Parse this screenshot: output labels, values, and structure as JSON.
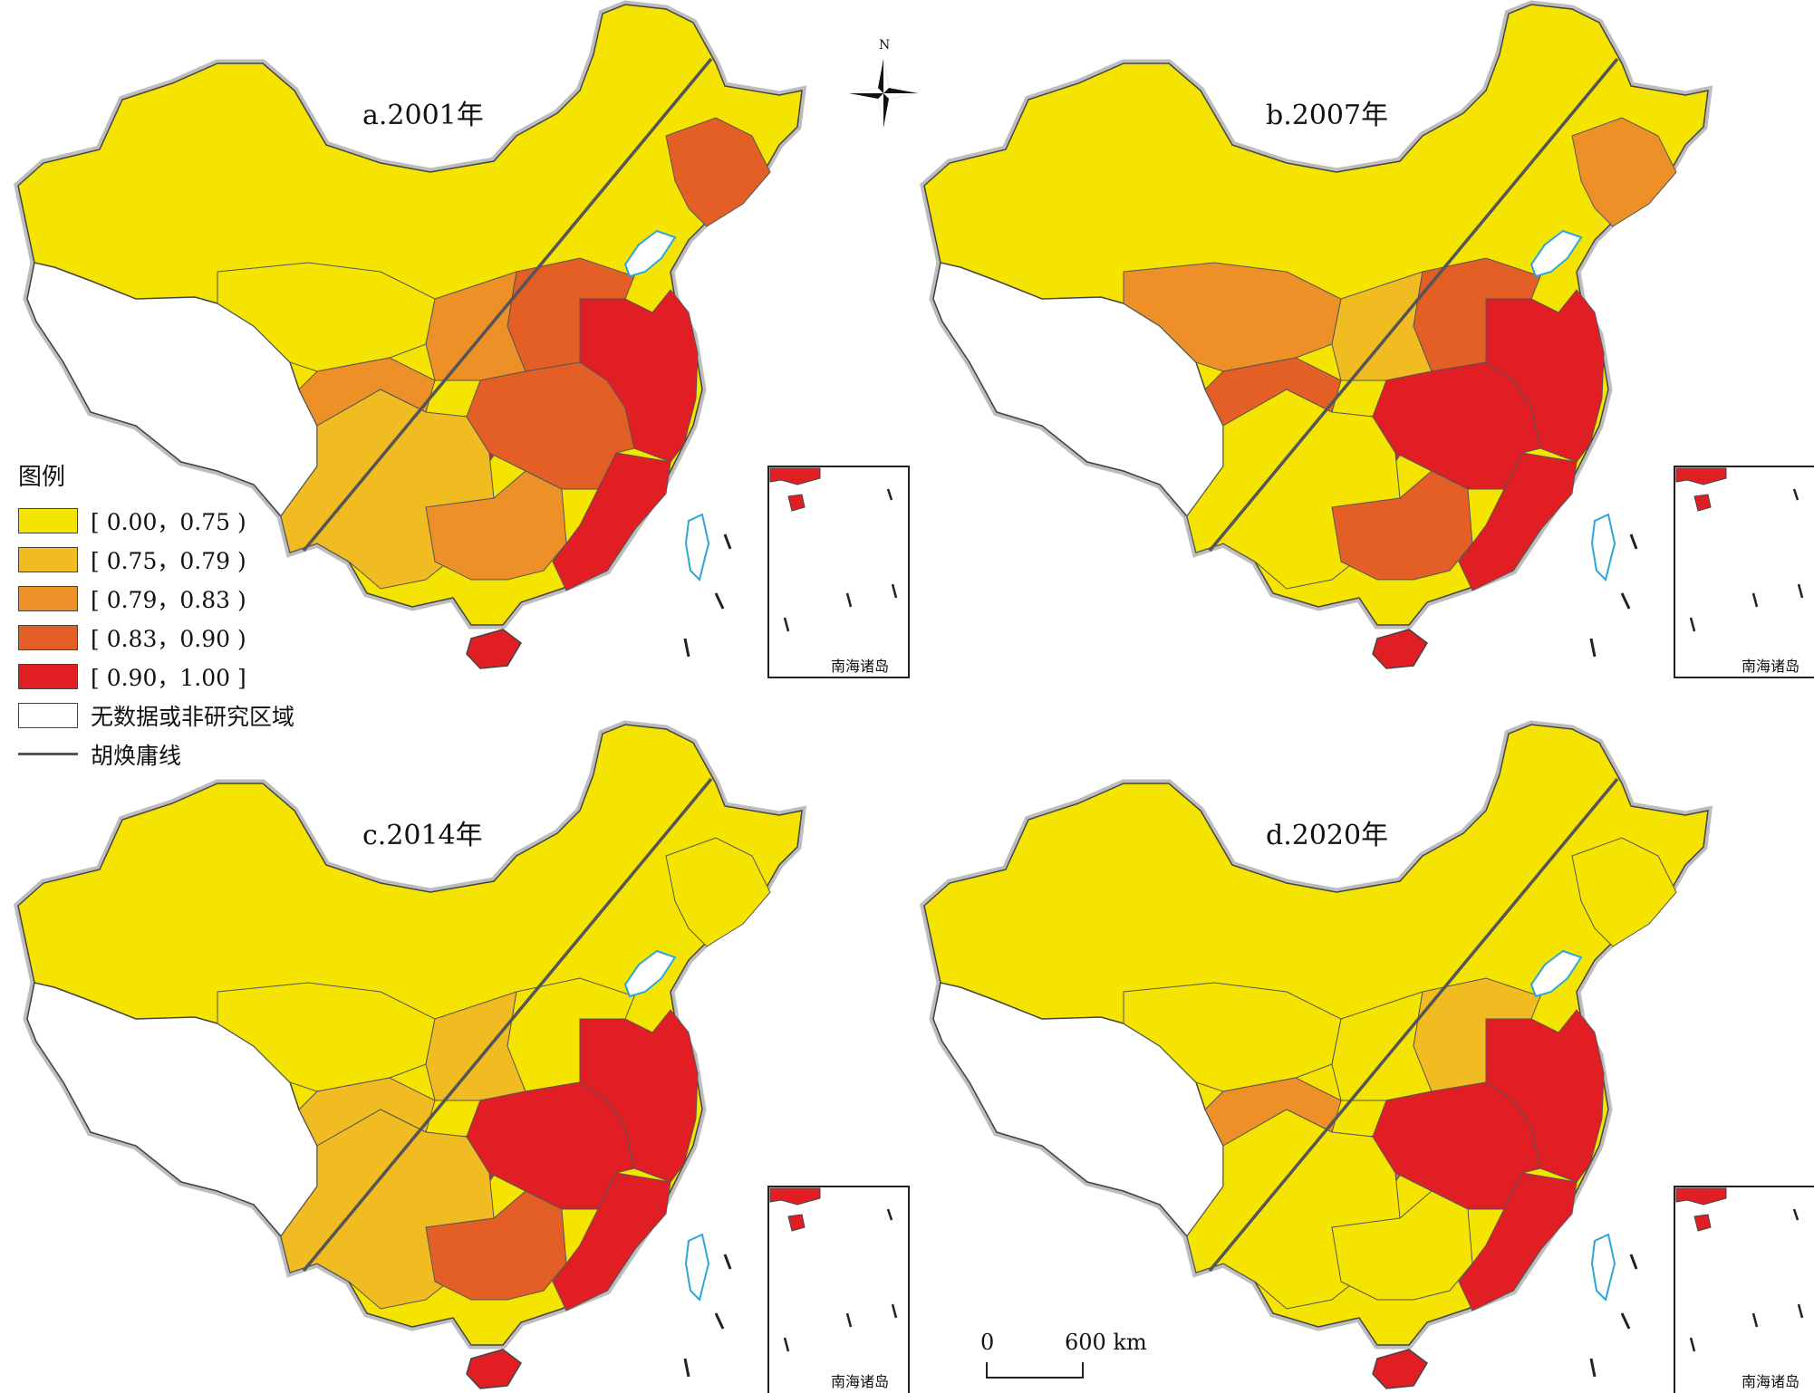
{
  "legend": {
    "title": "图例",
    "classes": [
      {
        "label": "[ 0.00，0.75 )",
        "color": "#f5e400"
      },
      {
        "label": "[ 0.75，0.79 )",
        "color": "#f1bb22"
      },
      {
        "label": "[ 0.79，0.83 )",
        "color": "#ec9027"
      },
      {
        "label": "[ 0.83，0.90 )",
        "color": "#e45f25"
      },
      {
        "label": "[ 0.90，1.00 ]",
        "color": "#e11e24"
      }
    ],
    "no_data_label": "无数据或非研究区域",
    "line_label": "胡焕庸线"
  },
  "panels": [
    {
      "title": "a.2001年",
      "inset_label": "南海诸岛"
    },
    {
      "title": "b.2007年",
      "inset_label": "南海诸岛"
    },
    {
      "title": "c.2014年",
      "inset_label": "南海诸岛"
    },
    {
      "title": "d.2020年",
      "inset_label": "南海诸岛"
    }
  ],
  "north_arrow": {
    "label": "N"
  },
  "scale_bar": {
    "zero": "0",
    "distance": "600 km"
  }
}
